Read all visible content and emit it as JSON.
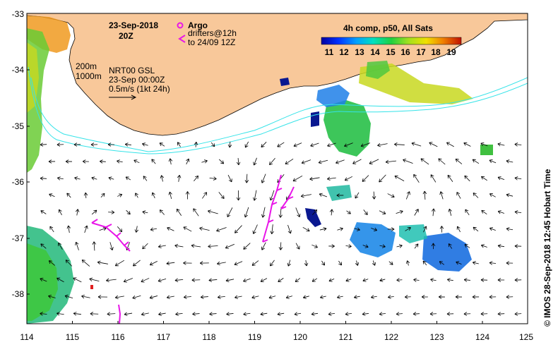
{
  "title": {
    "date": "23-Sep-2018",
    "time": "20Z"
  },
  "legend": {
    "argo_label": "Argo",
    "drifters_label": "drifters@12h",
    "drifters_label2": "to 24/09 12Z",
    "colorbar_title": "4h comp, p50, All Sats",
    "colorbar_ticks": [
      "11",
      "12",
      "13",
      "14",
      "15",
      "16",
      "17",
      "18",
      "19"
    ],
    "isobath1": "200m",
    "isobath2": "1000m",
    "gsl_line1": "NRT00 GSL",
    "gsl_line2": "23-Sep 00:00Z",
    "vector_scale": "0.5m/s (1kt 24h)"
  },
  "axes": {
    "x_ticks": [
      "114",
      "115",
      "116",
      "117",
      "118",
      "119",
      "120",
      "121",
      "122",
      "123",
      "124",
      "125"
    ],
    "y_ticks": [
      "-33",
      "-34",
      "-35",
      "-36",
      "-37",
      "-38"
    ]
  },
  "credit": "© IMOS 28-Sep-2018 12:45 Hobart Time",
  "colors": {
    "land": "#f8c89a",
    "isobath": "#35e3e8",
    "drifter": "#e815e8",
    "arrow": "#000000"
  }
}
